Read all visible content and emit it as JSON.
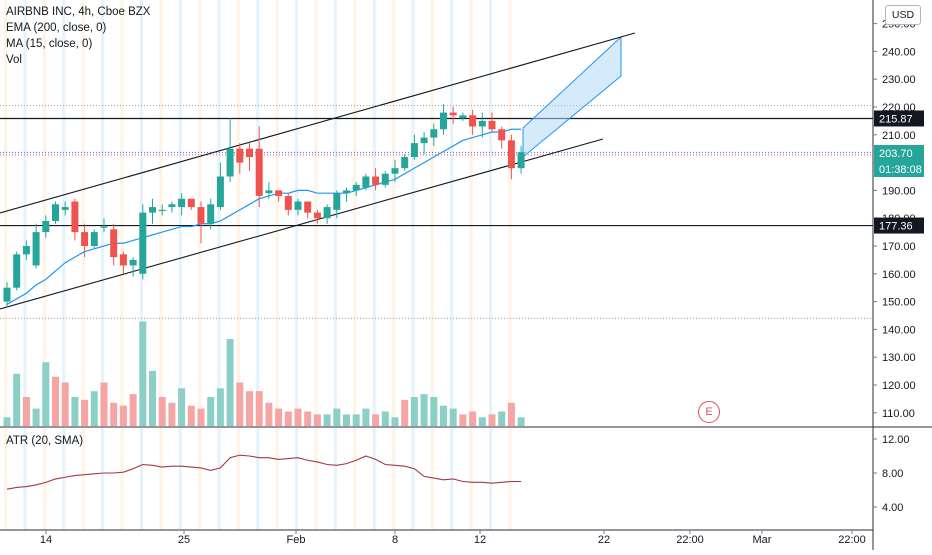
{
  "legend": {
    "symbol": "AIRBNB INC, 4h, Cboe BZX",
    "ema": "EMA (200, close, 0)",
    "ma": "MA (15, close, 0)",
    "vol": "Vol"
  },
  "atr_legend": "ATR (20, SMA)",
  "currency_button": "USD",
  "earnings_marker": "E",
  "price_axis": {
    "ticks": [
      "250.00",
      "240.00",
      "230.00",
      "220.00",
      "210.00",
      "200.00",
      "190.00",
      "180.00",
      "170.00",
      "160.00",
      "150.00",
      "140.00",
      "130.00",
      "120.00",
      "110.00"
    ],
    "labels": [
      {
        "text": "215.87",
        "bg": "#131722",
        "fg": "#ffffff"
      },
      {
        "text": "203.70",
        "bg": "#26a69a",
        "fg": "#ffffff"
      },
      {
        "text": "01:38:08",
        "bg": "#26a69a",
        "fg": "#ffffff"
      },
      {
        "text": "177.36",
        "bg": "#131722",
        "fg": "#ffffff"
      }
    ]
  },
  "atr_axis": {
    "ticks": [
      "12.00",
      "8.00",
      "4.00"
    ]
  },
  "time_axis": {
    "ticks": [
      "14",
      "25",
      "Feb",
      "8",
      "12",
      "22",
      "22:00",
      "Mar",
      "22:00"
    ]
  },
  "colors": {
    "up": "#26a69a",
    "down": "#ef5350",
    "vol_up": "#8ccfc6",
    "vol_down": "#f5a5a3",
    "ma": "#2196f3",
    "atr": "#a23846",
    "band": "#b3d9f7"
  },
  "chart_data": {
    "type": "candlestick",
    "title": "AIRBNB INC, 4h, Cboe BZX",
    "last_price": 203.7,
    "horizontal_levels": [
      215.87,
      177.36
    ],
    "candles": [
      {
        "o": 150,
        "h": 157,
        "l": 148,
        "c": 155
      },
      {
        "o": 155,
        "h": 168,
        "l": 154,
        "c": 167
      },
      {
        "o": 167,
        "h": 172,
        "l": 165,
        "c": 170
      },
      {
        "o": 163,
        "h": 178,
        "l": 162,
        "c": 175
      },
      {
        "o": 175,
        "h": 181,
        "l": 173,
        "c": 179
      },
      {
        "o": 179,
        "h": 186,
        "l": 178,
        "c": 185
      },
      {
        "o": 183,
        "h": 186,
        "l": 181,
        "c": 184
      },
      {
        "o": 186,
        "h": 187,
        "l": 172,
        "c": 175
      },
      {
        "o": 175,
        "h": 178,
        "l": 166,
        "c": 170
      },
      {
        "o": 170,
        "h": 176,
        "l": 169,
        "c": 175
      },
      {
        "o": 177,
        "h": 180,
        "l": 175,
        "c": 177
      },
      {
        "o": 176,
        "h": 178,
        "l": 163,
        "c": 166
      },
      {
        "o": 167,
        "h": 168,
        "l": 160,
        "c": 163
      },
      {
        "o": 163,
        "h": 166,
        "l": 159,
        "c": 165
      },
      {
        "o": 160,
        "h": 185,
        "l": 158,
        "c": 182
      },
      {
        "o": 182,
        "h": 187,
        "l": 178,
        "c": 184
      },
      {
        "o": 183,
        "h": 185,
        "l": 181,
        "c": 183
      },
      {
        "o": 184,
        "h": 186,
        "l": 182,
        "c": 185
      },
      {
        "o": 184,
        "h": 189,
        "l": 181,
        "c": 187
      },
      {
        "o": 187,
        "h": 187,
        "l": 183,
        "c": 184
      },
      {
        "o": 184,
        "h": 186,
        "l": 171,
        "c": 178
      },
      {
        "o": 178,
        "h": 187,
        "l": 176,
        "c": 185
      },
      {
        "o": 184,
        "h": 200,
        "l": 183,
        "c": 195
      },
      {
        "o": 195,
        "h": 216,
        "l": 193,
        "c": 205
      },
      {
        "o": 205,
        "h": 207,
        "l": 196,
        "c": 200
      },
      {
        "o": 205,
        "h": 207,
        "l": 197,
        "c": 202
      },
      {
        "o": 205,
        "h": 213,
        "l": 184,
        "c": 188
      },
      {
        "o": 189,
        "h": 193,
        "l": 187,
        "c": 190
      },
      {
        "o": 190,
        "h": 190,
        "l": 186,
        "c": 188
      },
      {
        "o": 188,
        "h": 189,
        "l": 181,
        "c": 183
      },
      {
        "o": 183,
        "h": 187,
        "l": 181,
        "c": 186
      },
      {
        "o": 186,
        "h": 186,
        "l": 180,
        "c": 182
      },
      {
        "o": 182,
        "h": 183,
        "l": 178,
        "c": 180
      },
      {
        "o": 180,
        "h": 185,
        "l": 178,
        "c": 184
      },
      {
        "o": 183,
        "h": 190,
        "l": 180,
        "c": 189
      },
      {
        "o": 189,
        "h": 191,
        "l": 186,
        "c": 190
      },
      {
        "o": 190,
        "h": 193,
        "l": 188,
        "c": 192
      },
      {
        "o": 191,
        "h": 196,
        "l": 190,
        "c": 195
      },
      {
        "o": 195,
        "h": 198,
        "l": 190,
        "c": 192
      },
      {
        "o": 192,
        "h": 197,
        "l": 191,
        "c": 196
      },
      {
        "o": 196,
        "h": 201,
        "l": 193,
        "c": 198
      },
      {
        "o": 198,
        "h": 203,
        "l": 197,
        "c": 202
      },
      {
        "o": 202,
        "h": 210,
        "l": 201,
        "c": 207
      },
      {
        "o": 207,
        "h": 211,
        "l": 203,
        "c": 209
      },
      {
        "o": 209,
        "h": 214,
        "l": 206,
        "c": 212
      },
      {
        "o": 212,
        "h": 221,
        "l": 210,
        "c": 218
      },
      {
        "o": 218,
        "h": 220,
        "l": 214,
        "c": 217
      },
      {
        "o": 216,
        "h": 218,
        "l": 215,
        "c": 217
      },
      {
        "o": 217,
        "h": 219,
        "l": 210,
        "c": 213
      },
      {
        "o": 213,
        "h": 218,
        "l": 209,
        "c": 215
      },
      {
        "o": 215,
        "h": 218,
        "l": 211,
        "c": 212
      },
      {
        "o": 212,
        "h": 213,
        "l": 205,
        "c": 208
      },
      {
        "o": 208,
        "h": 210,
        "l": 194,
        "c": 198
      },
      {
        "o": 198,
        "h": 206,
        "l": 196,
        "c": 203.7
      }
    ],
    "volume": [
      {
        "v": 3,
        "up": true
      },
      {
        "v": 18,
        "up": true
      },
      {
        "v": 10,
        "up": false
      },
      {
        "v": 6,
        "up": true
      },
      {
        "v": 22,
        "up": true
      },
      {
        "v": 17,
        "up": false
      },
      {
        "v": 15,
        "up": false
      },
      {
        "v": 10,
        "up": true
      },
      {
        "v": 9,
        "up": false
      },
      {
        "v": 12,
        "up": true
      },
      {
        "v": 15,
        "up": false
      },
      {
        "v": 8,
        "up": false
      },
      {
        "v": 7,
        "up": false
      },
      {
        "v": 11,
        "up": false
      },
      {
        "v": 36,
        "up": true
      },
      {
        "v": 19,
        "up": true
      },
      {
        "v": 10,
        "up": false
      },
      {
        "v": 8,
        "up": false
      },
      {
        "v": 13,
        "up": true
      },
      {
        "v": 7,
        "up": false
      },
      {
        "v": 6,
        "up": false
      },
      {
        "v": 10,
        "up": true
      },
      {
        "v": 13,
        "up": true
      },
      {
        "v": 30,
        "up": true
      },
      {
        "v": 15,
        "up": false
      },
      {
        "v": 12,
        "up": false
      },
      {
        "v": 12,
        "up": false
      },
      {
        "v": 8,
        "up": false
      },
      {
        "v": 6,
        "up": false
      },
      {
        "v": 5,
        "up": false
      },
      {
        "v": 6,
        "up": false
      },
      {
        "v": 5,
        "up": false
      },
      {
        "v": 4,
        "up": false
      },
      {
        "v": 4,
        "up": true
      },
      {
        "v": 6,
        "up": true
      },
      {
        "v": 4,
        "up": true
      },
      {
        "v": 4,
        "up": true
      },
      {
        "v": 6,
        "up": true
      },
      {
        "v": 4,
        "up": false
      },
      {
        "v": 5,
        "up": true
      },
      {
        "v": 3,
        "up": true
      },
      {
        "v": 9,
        "up": false
      },
      {
        "v": 10,
        "up": true
      },
      {
        "v": 11,
        "up": true
      },
      {
        "v": 10,
        "up": true
      },
      {
        "v": 7,
        "up": true
      },
      {
        "v": 6,
        "up": true
      },
      {
        "v": 4,
        "up": false
      },
      {
        "v": 5,
        "up": false
      },
      {
        "v": 3,
        "up": true
      },
      {
        "v": 4,
        "up": false
      },
      {
        "v": 5,
        "up": true
      },
      {
        "v": 8,
        "up": false
      },
      {
        "v": 3,
        "up": true
      }
    ],
    "atr": [
      6.1,
      6.3,
      6.4,
      6.6,
      6.9,
      7.3,
      7.5,
      7.7,
      7.8,
      7.9,
      8.0,
      8.0,
      8.1,
      8.5,
      9.0,
      8.9,
      8.7,
      8.8,
      8.8,
      8.7,
      8.6,
      8.3,
      8.6,
      9.8,
      10.1,
      10.0,
      9.8,
      9.8,
      9.6,
      9.7,
      9.8,
      9.5,
      9.3,
      9.0,
      8.9,
      9.1,
      9.5,
      10.0,
      9.6,
      9.0,
      8.9,
      8.8,
      8.5,
      7.6,
      7.4,
      7.2,
      7.3,
      7.0,
      6.9,
      6.9,
      6.8,
      6.9,
      7.0,
      7.0
    ],
    "ma15": [
      149,
      151,
      153,
      156,
      158,
      161,
      164,
      166,
      168,
      169,
      170,
      171,
      171,
      172,
      173,
      174,
      175,
      176,
      177,
      177,
      178,
      178,
      179,
      181,
      183,
      185,
      187,
      188,
      189,
      189,
      190,
      190,
      189,
      189,
      189,
      189,
      190,
      191,
      192,
      193,
      194,
      196,
      198,
      200,
      202,
      204,
      206,
      208,
      209,
      210,
      211,
      211,
      212,
      212
    ]
  }
}
